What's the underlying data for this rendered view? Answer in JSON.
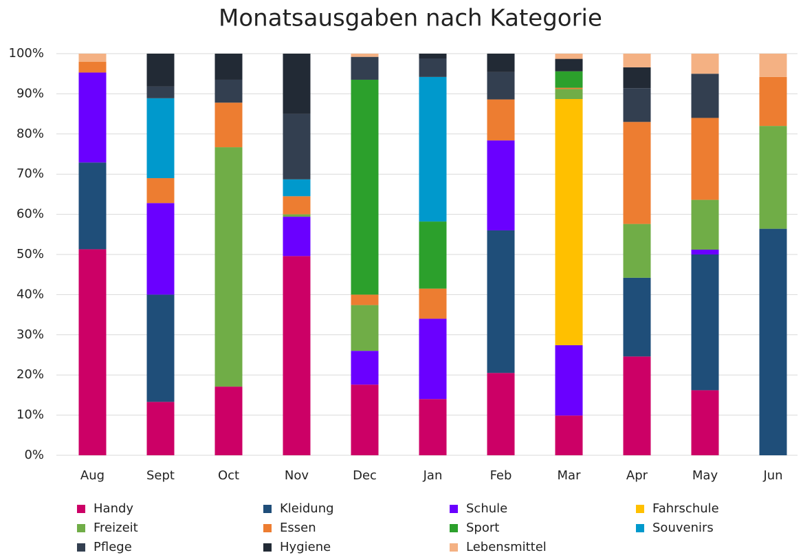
{
  "chart_data": {
    "type": "stacked_bar",
    "title": "Monatsausgaben nach Kategorie",
    "categories": [
      "Aug",
      "Sept",
      "Oct",
      "Nov",
      "Dec",
      "Jan",
      "Feb",
      "Mar",
      "Apr",
      "May",
      "Jun"
    ],
    "series": [
      {
        "name": "Handy",
        "color": "#cc0066",
        "values": [
          51.3,
          13.3,
          17.1,
          49.6,
          17.6,
          14,
          20.5,
          9.9,
          24.6,
          16.2,
          0
        ]
      },
      {
        "name": "Kleidung",
        "color": "#1f4e79",
        "values": [
          21.6,
          26.7,
          0,
          0,
          0,
          0,
          35.5,
          0,
          19.6,
          33.8,
          56.4
        ]
      },
      {
        "name": "Schule",
        "color": "#6a00ff",
        "values": [
          22.4,
          22.8,
          0,
          9.8,
          8.4,
          20,
          22.4,
          17.5,
          0,
          1.2,
          0
        ]
      },
      {
        "name": "Fahrschule",
        "color": "#ffc000",
        "values": [
          0,
          0,
          0,
          0,
          0,
          0,
          0,
          61.3,
          0,
          0,
          0
        ]
      },
      {
        "name": "Freizeit",
        "color": "#70ad47",
        "values": [
          0,
          0,
          59.6,
          0.6,
          11.4,
          0,
          0,
          2.5,
          13.4,
          12.4,
          25.6
        ]
      },
      {
        "name": "Essen",
        "color": "#ed7d31",
        "values": [
          2.7,
          6.2,
          11.1,
          4.5,
          2.6,
          7.5,
          10.2,
          0.3,
          25.4,
          20.4,
          12.2
        ]
      },
      {
        "name": "Sport",
        "color": "#2ca02c",
        "values": [
          0,
          0,
          0,
          0,
          53.5,
          16.7,
          0,
          4.1,
          0,
          0,
          0
        ]
      },
      {
        "name": "Souvenirs",
        "color": "#0099cc",
        "values": [
          0,
          19.9,
          0,
          4.2,
          0,
          36,
          0,
          0,
          0,
          0,
          0
        ]
      },
      {
        "name": "Pflege",
        "color": "#333f50",
        "values": [
          0,
          2.9,
          5.7,
          16.3,
          5.7,
          4.6,
          6.8,
          0,
          8.4,
          11,
          0
        ]
      },
      {
        "name": "Hygiene",
        "color": "#222a35",
        "values": [
          0,
          8.2,
          6.5,
          15,
          0,
          1.2,
          4.6,
          3.1,
          5.2,
          0,
          0
        ]
      },
      {
        "name": "Lebensmittel",
        "color": "#f4b183",
        "values": [
          2,
          0,
          0,
          0,
          0.8,
          0,
          0,
          1.3,
          3.4,
          5,
          5.8
        ]
      }
    ],
    "ylim": [
      0,
      100
    ],
    "yticks": [
      {
        "value": 0,
        "label": "0%"
      },
      {
        "value": 10,
        "label": "10%"
      },
      {
        "value": 20,
        "label": "20%"
      },
      {
        "value": 30,
        "label": "30%"
      },
      {
        "value": 40,
        "label": "40%"
      },
      {
        "value": 50,
        "label": "50%"
      },
      {
        "value": 60,
        "label": "60%"
      },
      {
        "value": 70,
        "label": "70%"
      },
      {
        "value": 80,
        "label": "80%"
      },
      {
        "value": 90,
        "label": "90%"
      },
      {
        "value": 100,
        "label": "100%"
      }
    ],
    "grid": true,
    "legend": "bottom"
  }
}
